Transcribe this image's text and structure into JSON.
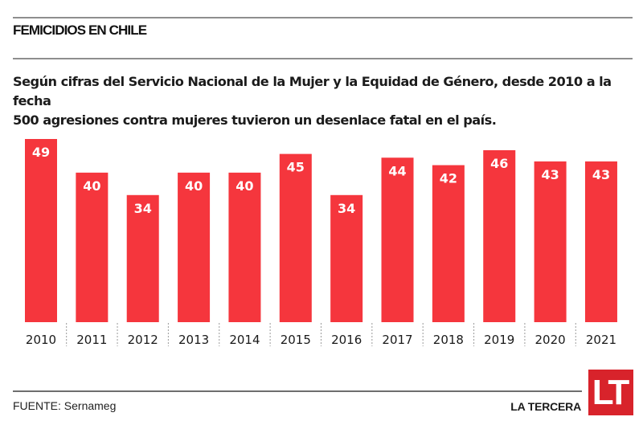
{
  "header": {
    "title": "FEMICIDIOS EN CHILE",
    "subtitle_line1": "Según cifras del Servicio Nacional de la Mujer y la Equidad de Género, desde 2010 a la fecha",
    "subtitle_line2": "500 agresiones contra mujeres tuvieron un desenlace fatal en el país."
  },
  "footer": {
    "source": "FUENTE: Sernameg",
    "brand": "LA TERCERA",
    "logo_text": "LT"
  },
  "colors": {
    "bar": "#f5363d",
    "bar_label": "#ffffff",
    "logo": "#d8232b"
  },
  "chart_data": {
    "type": "bar",
    "title": "FEMICIDIOS EN CHILE",
    "xlabel": "",
    "ylabel": "",
    "categories": [
      "2010",
      "2011",
      "2012",
      "2013",
      "2014",
      "2015",
      "2016",
      "2017",
      "2018",
      "2019",
      "2020",
      "2021"
    ],
    "values": [
      49,
      40,
      34,
      40,
      40,
      45,
      34,
      44,
      42,
      46,
      43,
      43
    ],
    "ylim": [
      0,
      49
    ],
    "grid": false,
    "legend": "none",
    "data_labels": "inside-top"
  }
}
